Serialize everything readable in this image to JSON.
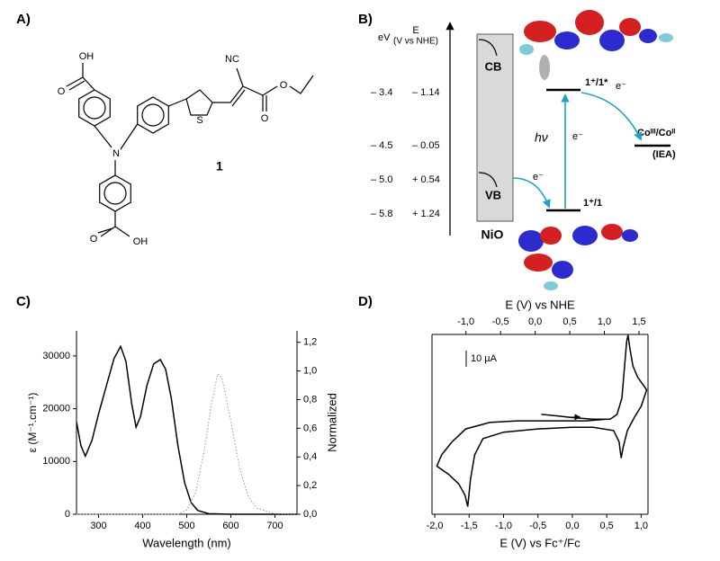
{
  "panel_a": {
    "label": "A)",
    "atoms": [
      "OH",
      "O",
      "N",
      "S",
      "NC",
      "O",
      "O",
      "O",
      "OH"
    ],
    "compound": "1"
  },
  "panel_b": {
    "label": "B)",
    "ev_label": "eV",
    "e_label": "E",
    "e_unit": "(V vs NHE)",
    "levels": [
      {
        "ev": "– 3.4",
        "nhe": "– 1.14"
      },
      {
        "ev": "– 4.5",
        "nhe": "– 0.05"
      },
      {
        "ev": "– 5.0",
        "nhe": "+ 0.54"
      },
      {
        "ev": "– 5.8",
        "nhe": "+ 1.24"
      }
    ],
    "cb": "CB",
    "vb": "VB",
    "nio": "NiO",
    "excited": "1⁺/1*",
    "ground": "1⁺/1",
    "cobalt": "Coᴵᴵᴵ/Coᴵᴵ",
    "iea": "(IEA)",
    "electron": "e⁻",
    "photon": "hν"
  },
  "panel_c": {
    "label": "C)"
  },
  "panel_d": {
    "label": "D)"
  },
  "chart_data": [
    {
      "type": "line",
      "xlabel": "Wavelength (nm)",
      "ylabel": "ε (M⁻¹.cm⁻¹)",
      "y2label": "Normalized",
      "xlim": [
        250,
        750
      ],
      "xticks": [
        300,
        400,
        500,
        600,
        700
      ],
      "ylim": [
        0,
        34750
      ],
      "yticks": [
        0,
        10000,
        20000,
        30000
      ],
      "y2lim": [
        0,
        1.28
      ],
      "y2ticks": [
        {
          "value": 0,
          "label": "0,0"
        },
        {
          "value": 0.2,
          "label": "0,2"
        },
        {
          "value": 0.4,
          "label": "0,4"
        },
        {
          "value": 0.6,
          "label": "0,6"
        },
        {
          "value": 0.8,
          "label": "0,8"
        },
        {
          "value": 1.0,
          "label": "1,0"
        },
        {
          "value": 1.2,
          "label": "1,2"
        }
      ],
      "series": [
        {
          "color": "#000000",
          "style": "solid",
          "x": [
            250,
            260,
            270,
            285,
            300,
            320,
            335,
            350,
            362,
            375,
            385,
            395,
            410,
            425,
            440,
            452,
            465,
            480,
            495,
            510,
            525,
            550,
            600,
            750
          ],
          "values": [
            17500,
            13000,
            11000,
            14000,
            19000,
            25000,
            29500,
            31800,
            29000,
            21000,
            16500,
            18500,
            24500,
            28500,
            29300,
            27500,
            22000,
            13000,
            6000,
            2200,
            700,
            100,
            0,
            0
          ]
        },
        {
          "color": "#9a9a9a",
          "style": "dotted",
          "axis": "y2",
          "x": [
            250,
            480,
            500,
            520,
            540,
            555,
            570,
            580,
            600,
            620,
            640,
            660,
            700,
            750
          ],
          "values": [
            0,
            0,
            0.03,
            0.15,
            0.45,
            0.75,
            0.98,
            0.95,
            0.65,
            0.32,
            0.12,
            0.04,
            0.005,
            0
          ]
        }
      ]
    },
    {
      "type": "line",
      "xlabel": "E (V) vs Fc⁺/Fc",
      "x2label": "E (V) vs NHE",
      "xlim": [
        -2.04,
        1.1
      ],
      "xticks": [
        {
          "value": -2,
          "label": "-2,0"
        },
        {
          "value": -1.5,
          "label": "-1,5"
        },
        {
          "value": -1,
          "label": "-1,0"
        },
        {
          "value": -0.5,
          "label": "-0,5"
        },
        {
          "value": 0,
          "label": "0,0"
        },
        {
          "value": 0.5,
          "label": "0,5"
        },
        {
          "value": 1,
          "label": "1,0"
        }
      ],
      "x2lim": [
        -1.49,
        1.63
      ],
      "x2ticks": [
        {
          "value": -1,
          "label": "-1,0"
        },
        {
          "value": -0.5,
          "label": "-0,5"
        },
        {
          "value": 0,
          "label": "0,0"
        },
        {
          "value": 0.5,
          "label": "0,5"
        },
        {
          "value": 1,
          "label": "1,0"
        },
        {
          "value": 1.5,
          "label": "1,5"
        }
      ],
      "ylim": [
        -56.7,
        54.4
      ],
      "scale_bar": {
        "value": 10,
        "label": "10 µA"
      },
      "series": [
        {
          "color": "#000000",
          "x": [
            -0.45,
            -0.2,
            0.0,
            0.3,
            0.55,
            0.65,
            0.72,
            0.76,
            0.79,
            0.81,
            0.84,
            0.88,
            0.95,
            1.05,
            1.08,
            1.0,
            0.9,
            0.8,
            0.74,
            0.71,
            0.68,
            0.6,
            0.3,
            0.0,
            -0.5,
            -1.0,
            -1.3,
            -1.42,
            -1.48,
            -1.52,
            -1.56,
            -1.65,
            -1.8,
            -1.97,
            -1.9,
            -1.75,
            -1.55,
            -1.2,
            -0.8,
            -0.3,
            0.2,
            0.5
          ],
          "values": [
            5,
            4,
            3,
            2,
            2,
            5,
            15,
            35,
            50,
            54,
            45,
            35,
            28,
            22,
            20,
            10,
            3,
            -5,
            -15,
            -22,
            -12,
            -5,
            -3,
            -3,
            -4,
            -6,
            -10,
            -20,
            -35,
            -52,
            -45,
            -38,
            -32,
            -27,
            -20,
            -12,
            -4,
            0,
            1,
            1,
            1,
            2
          ]
        }
      ]
    }
  ]
}
